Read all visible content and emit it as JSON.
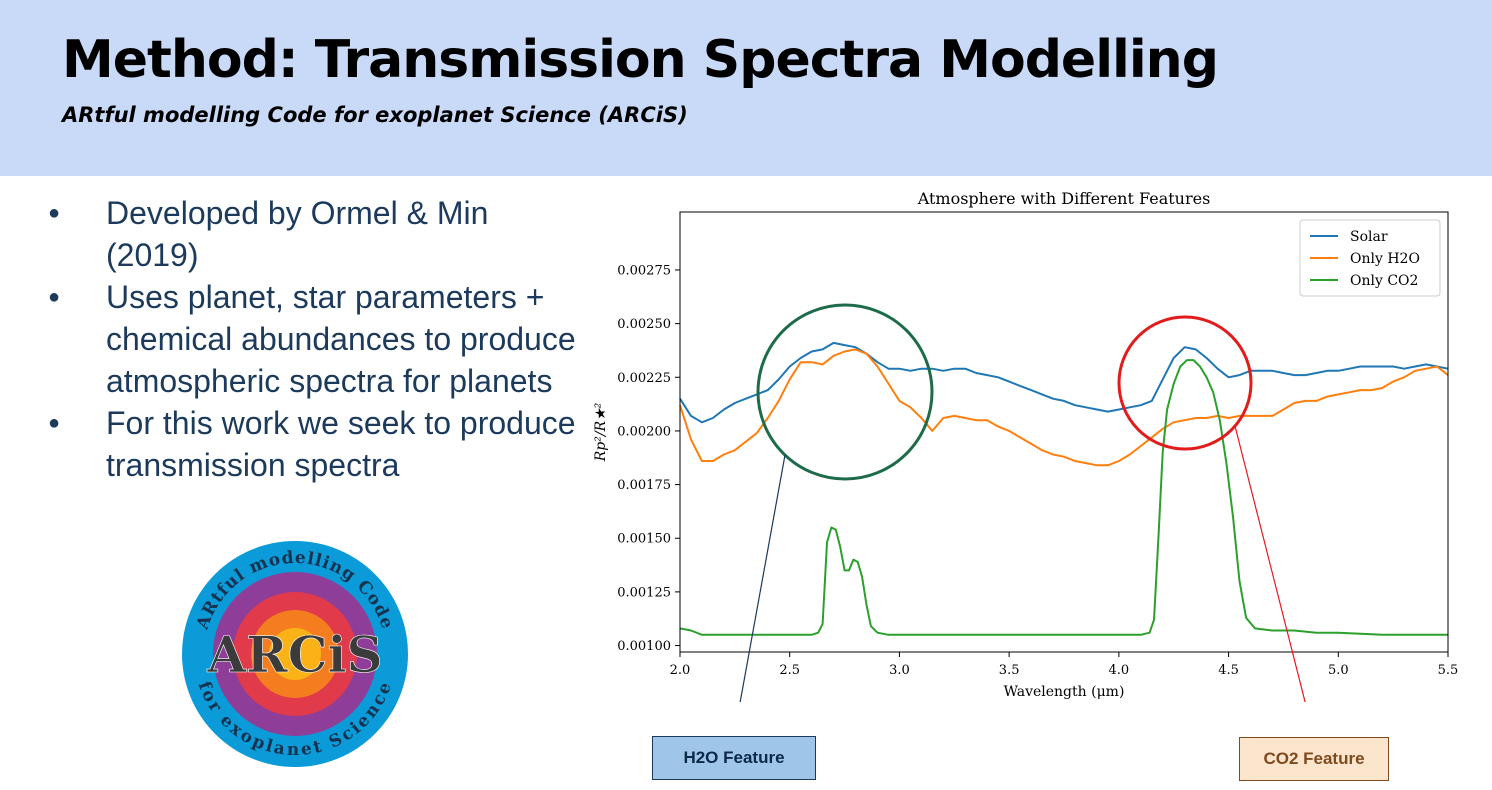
{
  "slide": {
    "title": "Method: Transmission Spectra Modelling",
    "subtitle": "ARtful modelling Code for exoplanet Science (ARCiS)",
    "bullets": [
      "Developed by Ormel & Min (2019)",
      "Uses planet, star parameters + chemical abundances to produce atmospheric spectra for planets",
      "For this work we seek to produce transmission spectra"
    ],
    "colors": {
      "header_bg": "#c9daf8",
      "bullet_text": "#1c3a5c"
    }
  },
  "logo": {
    "top_text": "ARtful modelling Code",
    "bottom_text": "for exoplanet Science",
    "center_text": "ARCiS",
    "ring_colors": [
      "#0b9bd9",
      "#8e3e98",
      "#e13a4a",
      "#f47d20",
      "#fbb216"
    ]
  },
  "callouts": {
    "h2o": "H2O Feature",
    "co2": "CO2 Feature"
  },
  "annotations": {
    "h2o_circle_color": "#1e6b4a",
    "co2_circle_color": "#e21b1b"
  },
  "chart_data": {
    "type": "line",
    "title": "Atmosphere with Different Features",
    "xlabel": "Wavelength (μm)",
    "ylabel": "Rp²/R★²",
    "xlim": [
      2.0,
      5.5
    ],
    "ylim": [
      0.00097,
      0.00302
    ],
    "xticks": [
      "2.0",
      "2.5",
      "3.0",
      "3.5",
      "4.0",
      "4.5",
      "5.0",
      "5.5"
    ],
    "yticks": [
      "0.00100",
      "0.00125",
      "0.00150",
      "0.00175",
      "0.00200",
      "0.00225",
      "0.00250",
      "0.00275"
    ],
    "grid": false,
    "legend_position": "top-right",
    "series": [
      {
        "name": "Solar",
        "color": "#1f77b4",
        "x": [
          2.0,
          2.05,
          2.1,
          2.15,
          2.2,
          2.25,
          2.3,
          2.35,
          2.4,
          2.45,
          2.5,
          2.55,
          2.6,
          2.65,
          2.7,
          2.75,
          2.8,
          2.85,
          2.9,
          2.95,
          3.0,
          3.05,
          3.1,
          3.15,
          3.2,
          3.25,
          3.3,
          3.35,
          3.4,
          3.45,
          3.5,
          3.55,
          3.6,
          3.65,
          3.7,
          3.75,
          3.8,
          3.85,
          3.9,
          3.95,
          4.0,
          4.05,
          4.1,
          4.15,
          4.2,
          4.25,
          4.3,
          4.35,
          4.4,
          4.45,
          4.5,
          4.55,
          4.6,
          4.65,
          4.7,
          4.75,
          4.8,
          4.85,
          4.9,
          4.95,
          5.0,
          5.05,
          5.1,
          5.15,
          5.2,
          5.25,
          5.3,
          5.35,
          5.4,
          5.45,
          5.5
        ],
        "y": [
          0.00215,
          0.00207,
          0.00204,
          0.00206,
          0.0021,
          0.00213,
          0.00215,
          0.00217,
          0.00219,
          0.00224,
          0.0023,
          0.00234,
          0.00237,
          0.00238,
          0.00241,
          0.0024,
          0.00239,
          0.00236,
          0.00232,
          0.00229,
          0.00229,
          0.00228,
          0.00229,
          0.00229,
          0.00228,
          0.00229,
          0.00229,
          0.00227,
          0.00226,
          0.00225,
          0.00223,
          0.00221,
          0.00219,
          0.00217,
          0.00215,
          0.00214,
          0.00212,
          0.00211,
          0.0021,
          0.00209,
          0.0021,
          0.00211,
          0.00212,
          0.00214,
          0.00224,
          0.00234,
          0.00239,
          0.00238,
          0.00234,
          0.00229,
          0.00225,
          0.00226,
          0.00228,
          0.00228,
          0.00228,
          0.00227,
          0.00226,
          0.00226,
          0.00227,
          0.00228,
          0.00228,
          0.00229,
          0.0023,
          0.0023,
          0.0023,
          0.0023,
          0.00229,
          0.0023,
          0.00231,
          0.0023,
          0.00229
        ]
      },
      {
        "name": "Only H2O",
        "color": "#ff7f0e",
        "x": [
          2.0,
          2.05,
          2.1,
          2.15,
          2.2,
          2.25,
          2.3,
          2.35,
          2.4,
          2.45,
          2.5,
          2.55,
          2.6,
          2.65,
          2.7,
          2.75,
          2.8,
          2.85,
          2.9,
          2.95,
          3.0,
          3.05,
          3.1,
          3.15,
          3.2,
          3.25,
          3.3,
          3.35,
          3.4,
          3.45,
          3.5,
          3.55,
          3.6,
          3.65,
          3.7,
          3.75,
          3.8,
          3.85,
          3.9,
          3.95,
          4.0,
          4.05,
          4.1,
          4.15,
          4.2,
          4.25,
          4.3,
          4.35,
          4.4,
          4.45,
          4.5,
          4.55,
          4.6,
          4.65,
          4.7,
          4.75,
          4.8,
          4.85,
          4.9,
          4.95,
          5.0,
          5.05,
          5.1,
          5.15,
          5.2,
          5.25,
          5.3,
          5.35,
          5.4,
          5.45,
          5.5
        ],
        "y": [
          0.00212,
          0.00196,
          0.00186,
          0.00186,
          0.00189,
          0.00191,
          0.00195,
          0.00199,
          0.00206,
          0.00214,
          0.00224,
          0.00232,
          0.00232,
          0.00231,
          0.00235,
          0.00237,
          0.00238,
          0.00236,
          0.0023,
          0.00222,
          0.00214,
          0.00211,
          0.00206,
          0.002,
          0.00206,
          0.00207,
          0.00206,
          0.00205,
          0.00205,
          0.00202,
          0.002,
          0.00197,
          0.00194,
          0.00191,
          0.00189,
          0.00188,
          0.00186,
          0.00185,
          0.00184,
          0.00184,
          0.00186,
          0.00189,
          0.00193,
          0.00197,
          0.00201,
          0.00204,
          0.00205,
          0.00206,
          0.00206,
          0.00207,
          0.00206,
          0.00207,
          0.00207,
          0.00207,
          0.00207,
          0.0021,
          0.00213,
          0.00214,
          0.00214,
          0.00216,
          0.00217,
          0.00218,
          0.00219,
          0.00219,
          0.0022,
          0.00223,
          0.00225,
          0.00228,
          0.00229,
          0.0023,
          0.00226
        ]
      },
      {
        "name": "Only CO2",
        "color": "#2ca02c",
        "x": [
          2.0,
          2.05,
          2.1,
          2.2,
          2.3,
          2.4,
          2.5,
          2.6,
          2.63,
          2.65,
          2.67,
          2.69,
          2.71,
          2.73,
          2.75,
          2.77,
          2.79,
          2.81,
          2.83,
          2.85,
          2.87,
          2.9,
          2.95,
          3.0,
          3.1,
          3.3,
          3.5,
          3.7,
          3.9,
          4.1,
          4.14,
          4.16,
          4.18,
          4.2,
          4.22,
          4.25,
          4.28,
          4.31,
          4.34,
          4.37,
          4.4,
          4.43,
          4.46,
          4.49,
          4.52,
          4.55,
          4.58,
          4.62,
          4.7,
          4.8,
          4.9,
          5.0,
          5.2,
          5.5
        ],
        "y": [
          0.00108,
          0.00107,
          0.00105,
          0.00105,
          0.00105,
          0.00105,
          0.00105,
          0.00105,
          0.00106,
          0.0011,
          0.00148,
          0.00155,
          0.00154,
          0.00146,
          0.00135,
          0.00135,
          0.0014,
          0.00139,
          0.00132,
          0.00119,
          0.00109,
          0.00106,
          0.00105,
          0.00105,
          0.00105,
          0.00105,
          0.00105,
          0.00105,
          0.00105,
          0.00105,
          0.00106,
          0.00112,
          0.0015,
          0.0019,
          0.0021,
          0.00222,
          0.0023,
          0.00233,
          0.00233,
          0.0023,
          0.00225,
          0.00218,
          0.00205,
          0.00185,
          0.0016,
          0.0013,
          0.00113,
          0.00108,
          0.00107,
          0.00107,
          0.00106,
          0.00106,
          0.00105,
          0.00105
        ]
      }
    ]
  }
}
